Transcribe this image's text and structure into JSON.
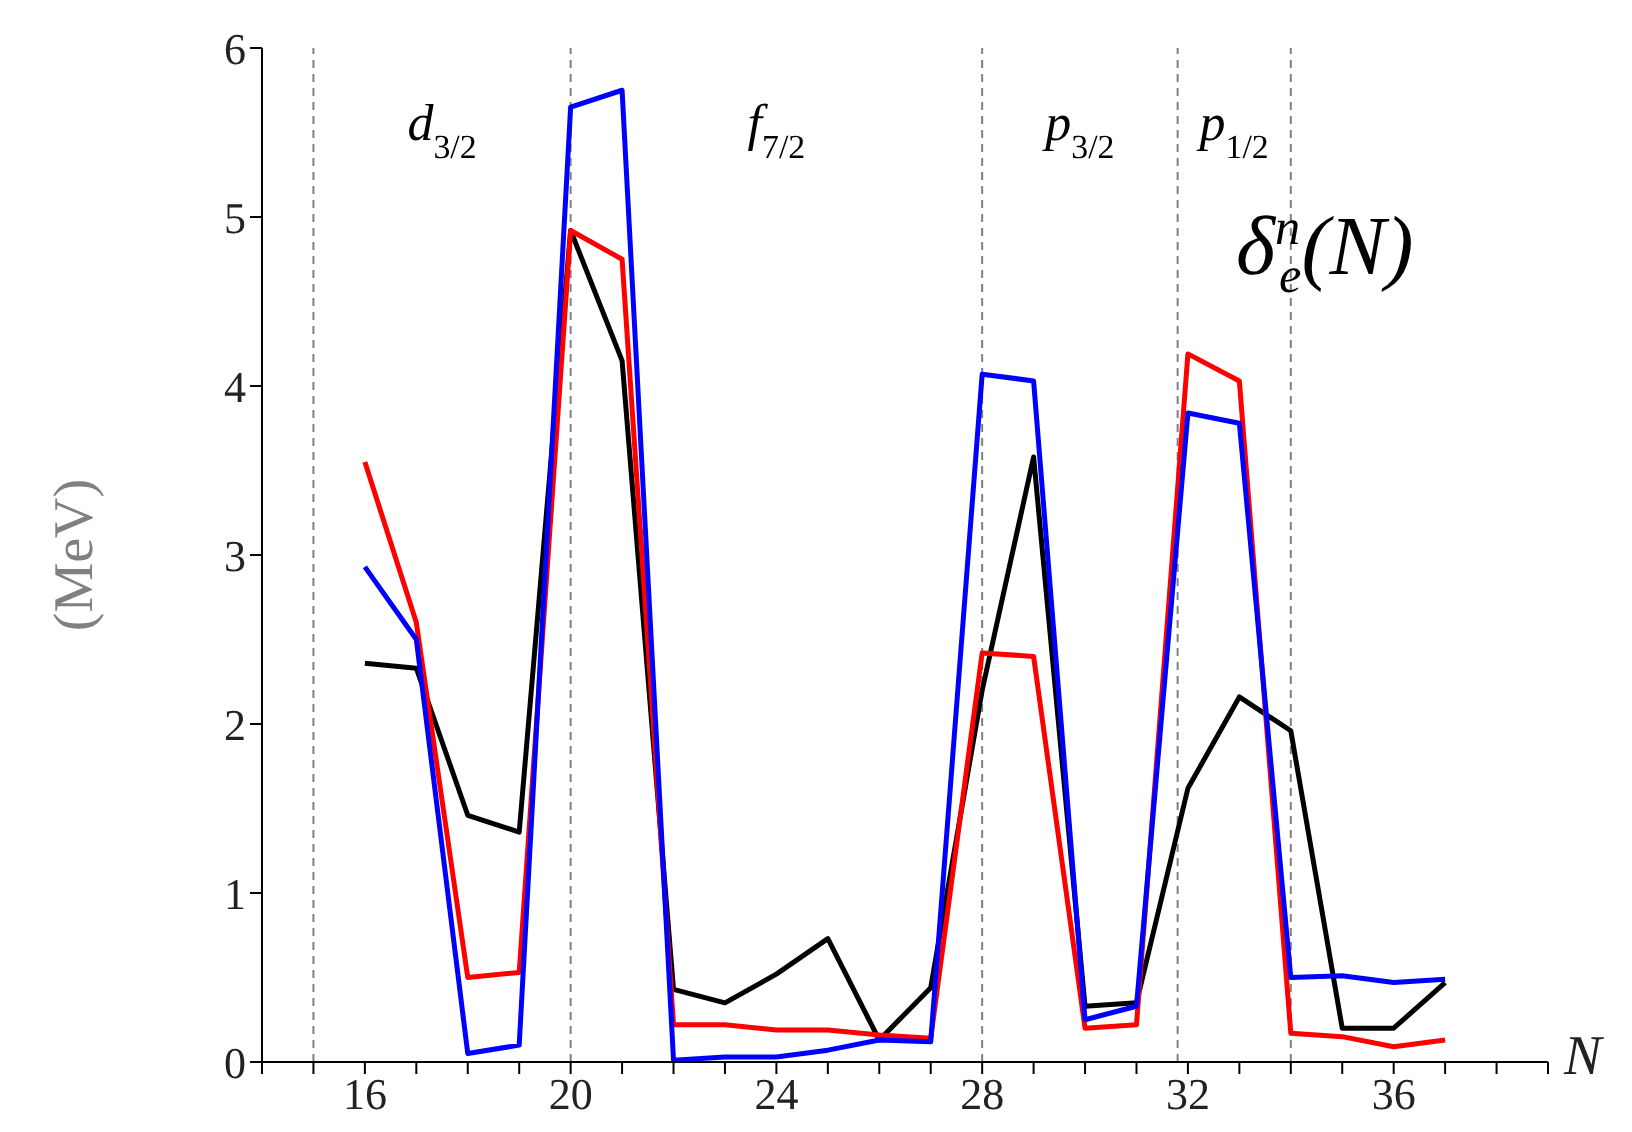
{
  "chart_data": {
    "type": "line",
    "title": "δ$^{n}$$_{e}$(N)",
    "xlabel": "N",
    "ylabel": "(MeV)",
    "x": [
      16,
      17,
      18,
      19,
      20,
      21,
      22,
      23,
      24,
      25,
      26,
      27,
      28,
      29,
      30,
      31,
      32,
      33,
      34,
      35,
      36,
      37
    ],
    "series": [
      {
        "color": "#000000",
        "values": [
          2.36,
          2.33,
          1.46,
          1.36,
          4.92,
          4.15,
          0.43,
          0.35,
          0.52,
          0.73,
          0.13,
          0.44,
          2.2,
          3.58,
          0.33,
          0.35,
          1.62,
          2.16,
          1.96,
          0.2,
          0.2,
          0.47
        ]
      },
      {
        "color": "#ff0000",
        "values": [
          3.55,
          2.6,
          0.5,
          0.53,
          4.92,
          4.75,
          0.22,
          0.22,
          0.19,
          0.19,
          0.16,
          0.14,
          2.42,
          2.4,
          0.2,
          0.22,
          4.19,
          4.03,
          0.17,
          0.15,
          0.09,
          0.13
        ]
      },
      {
        "color": "#0000ff",
        "values": [
          2.93,
          2.5,
          0.05,
          0.1,
          5.65,
          5.75,
          0.01,
          0.03,
          0.03,
          0.07,
          0.13,
          0.12,
          4.07,
          4.03,
          0.25,
          0.33,
          3.84,
          3.78,
          0.5,
          0.51,
          0.47,
          0.49
        ]
      }
    ],
    "xlim": [
      14,
      39
    ],
    "xticks": [
      {
        "value": 14,
        "label": null
      },
      {
        "value": 15,
        "label": null
      },
      16,
      {
        "value": 17,
        "label": null
      },
      {
        "value": 18,
        "label": null
      },
      {
        "value": 19,
        "label": null
      },
      20,
      {
        "value": 21,
        "label": null
      },
      {
        "value": 22,
        "label": null
      },
      {
        "value": 23,
        "label": null
      },
      24,
      {
        "value": 25,
        "label": null
      },
      {
        "value": 26,
        "label": null
      },
      {
        "value": 27,
        "label": null
      },
      28,
      {
        "value": 29,
        "label": null
      },
      {
        "value": 30,
        "label": null
      },
      {
        "value": 31,
        "label": null
      },
      32,
      {
        "value": 33,
        "label": null
      },
      {
        "value": 34,
        "label": null
      },
      {
        "value": 35,
        "label": null
      },
      36,
      {
        "value": 37,
        "label": null
      },
      {
        "value": 38,
        "label": null
      },
      {
        "value": 39,
        "label": null
      }
    ],
    "ylim": [
      0,
      6
    ],
    "yticks": [
      0,
      1,
      2,
      3,
      4,
      5,
      6
    ],
    "ref_lines": [
      {
        "axis": "x",
        "value": 15,
        "color": "#808080",
        "line_style": "dashed"
      },
      {
        "axis": "x",
        "value": 20,
        "color": "#808080",
        "line_style": "dashed"
      },
      {
        "axis": "x",
        "value": 28,
        "color": "#808080",
        "line_style": "dashed"
      },
      {
        "axis": "x",
        "value": 31.8,
        "color": "#808080",
        "line_style": "dashed"
      },
      {
        "axis": "x",
        "value": 34,
        "color": "#808080",
        "line_style": "dashed"
      }
    ],
    "annotations": [
      "d$_{3/2}$",
      "f$_{7/2}$",
      "p$_{3/2}$",
      "p$_{1/2}$"
    ],
    "grid": false,
    "legend": false,
    "marker": "none",
    "line_style": "solid"
  }
}
